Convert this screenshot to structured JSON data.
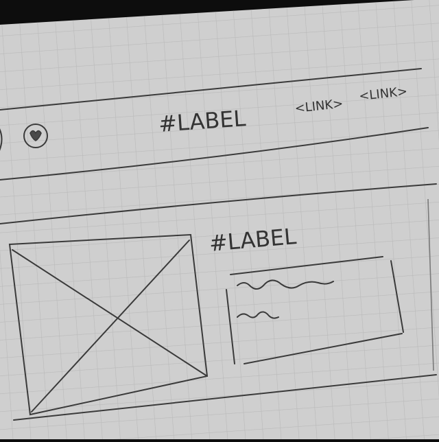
{
  "colors": {
    "paper": "#cfcfcf",
    "grid": "#b9b9b9",
    "ink": "#333333",
    "background": "#0d0d0d"
  },
  "header": {
    "label": "#LABEL",
    "links": [
      "<LINK>",
      "<LINK>"
    ],
    "icon": "heart-icon"
  },
  "content": {
    "label": "#LABEL",
    "image": "image-placeholder-icon"
  }
}
